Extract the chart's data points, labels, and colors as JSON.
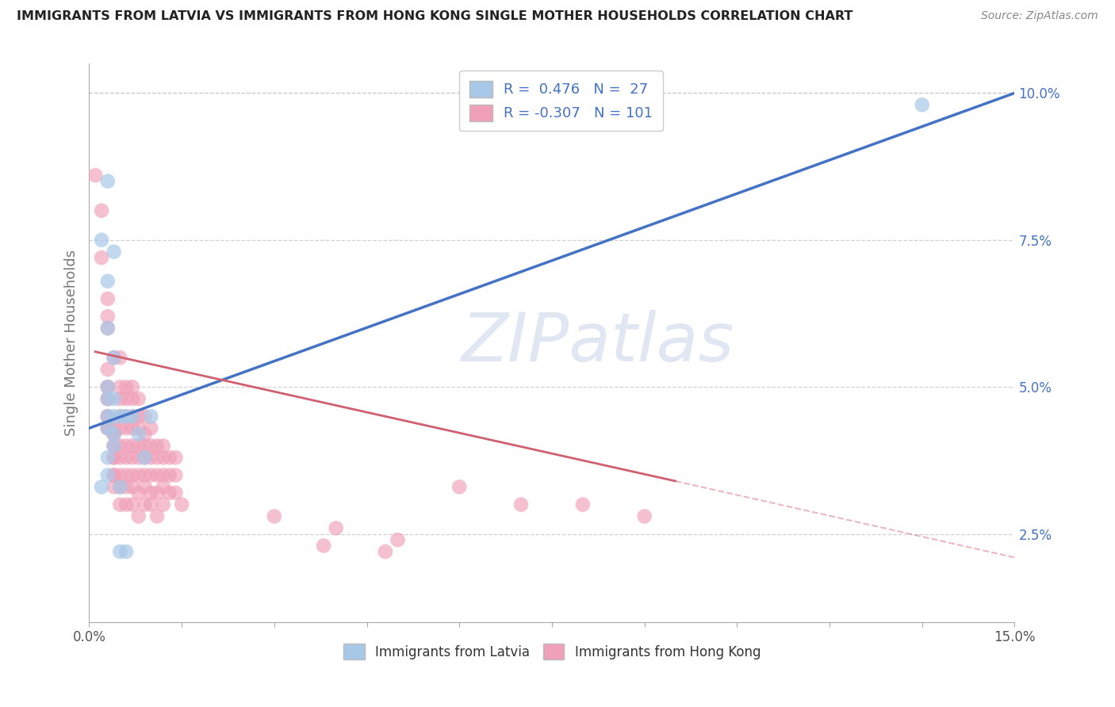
{
  "title": "IMMIGRANTS FROM LATVIA VS IMMIGRANTS FROM HONG KONG SINGLE MOTHER HOUSEHOLDS CORRELATION CHART",
  "source": "Source: ZipAtlas.com",
  "ylabel": "Single Mother Households",
  "xlim": [
    0.0,
    0.15
  ],
  "ylim": [
    0.01,
    0.105
  ],
  "latvia_color": "#a8c8e8",
  "hong_kong_color": "#f0a0b8",
  "latvia_line_color": "#4472c4",
  "hong_kong_line_color": "#d06070",
  "watermark": "ZIPatlas",
  "latvia_points": [
    [
      0.003,
      0.085,
      12
    ],
    [
      0.004,
      0.073,
      10
    ],
    [
      0.003,
      0.068,
      9
    ],
    [
      0.002,
      0.075,
      8
    ],
    [
      0.003,
      0.06,
      10
    ],
    [
      0.004,
      0.055,
      9
    ],
    [
      0.003,
      0.05,
      10
    ],
    [
      0.003,
      0.048,
      9
    ],
    [
      0.004,
      0.048,
      9
    ],
    [
      0.003,
      0.045,
      9
    ],
    [
      0.004,
      0.045,
      9
    ],
    [
      0.005,
      0.045,
      9
    ],
    [
      0.003,
      0.043,
      9
    ],
    [
      0.004,
      0.042,
      9
    ],
    [
      0.004,
      0.04,
      9
    ],
    [
      0.003,
      0.038,
      9
    ],
    [
      0.003,
      0.035,
      9
    ],
    [
      0.002,
      0.033,
      9
    ],
    [
      0.005,
      0.033,
      9
    ],
    [
      0.006,
      0.045,
      9
    ],
    [
      0.007,
      0.045,
      9
    ],
    [
      0.008,
      0.042,
      9
    ],
    [
      0.009,
      0.038,
      9
    ],
    [
      0.01,
      0.045,
      9
    ],
    [
      0.005,
      0.022,
      9
    ],
    [
      0.006,
      0.022,
      9
    ],
    [
      0.135,
      0.098,
      9
    ]
  ],
  "hk_points": [
    [
      0.001,
      0.086,
      22
    ],
    [
      0.002,
      0.08,
      12
    ],
    [
      0.002,
      0.072,
      10
    ],
    [
      0.003,
      0.065,
      10
    ],
    [
      0.003,
      0.062,
      10
    ],
    [
      0.003,
      0.06,
      10
    ],
    [
      0.004,
      0.055,
      10
    ],
    [
      0.003,
      0.053,
      10
    ],
    [
      0.003,
      0.05,
      10
    ],
    [
      0.003,
      0.05,
      10
    ],
    [
      0.003,
      0.048,
      10
    ],
    [
      0.003,
      0.048,
      10
    ],
    [
      0.003,
      0.045,
      10
    ],
    [
      0.003,
      0.045,
      10
    ],
    [
      0.003,
      0.043,
      10
    ],
    [
      0.003,
      0.043,
      10
    ],
    [
      0.004,
      0.043,
      10
    ],
    [
      0.004,
      0.042,
      10
    ],
    [
      0.004,
      0.042,
      10
    ],
    [
      0.004,
      0.04,
      10
    ],
    [
      0.004,
      0.04,
      10
    ],
    [
      0.004,
      0.038,
      10
    ],
    [
      0.004,
      0.038,
      10
    ],
    [
      0.004,
      0.035,
      10
    ],
    [
      0.004,
      0.035,
      10
    ],
    [
      0.004,
      0.033,
      10
    ],
    [
      0.005,
      0.055,
      10
    ],
    [
      0.005,
      0.05,
      10
    ],
    [
      0.005,
      0.048,
      10
    ],
    [
      0.005,
      0.045,
      10
    ],
    [
      0.005,
      0.043,
      10
    ],
    [
      0.005,
      0.04,
      10
    ],
    [
      0.005,
      0.038,
      10
    ],
    [
      0.005,
      0.035,
      10
    ],
    [
      0.005,
      0.033,
      10
    ],
    [
      0.005,
      0.03,
      10
    ],
    [
      0.006,
      0.05,
      10
    ],
    [
      0.006,
      0.048,
      10
    ],
    [
      0.006,
      0.045,
      10
    ],
    [
      0.006,
      0.043,
      10
    ],
    [
      0.006,
      0.04,
      10
    ],
    [
      0.006,
      0.038,
      10
    ],
    [
      0.006,
      0.035,
      10
    ],
    [
      0.006,
      0.033,
      10
    ],
    [
      0.006,
      0.03,
      10
    ],
    [
      0.007,
      0.05,
      10
    ],
    [
      0.007,
      0.048,
      10
    ],
    [
      0.007,
      0.045,
      10
    ],
    [
      0.007,
      0.043,
      10
    ],
    [
      0.007,
      0.04,
      10
    ],
    [
      0.007,
      0.038,
      10
    ],
    [
      0.007,
      0.035,
      10
    ],
    [
      0.007,
      0.033,
      10
    ],
    [
      0.007,
      0.03,
      10
    ],
    [
      0.008,
      0.048,
      10
    ],
    [
      0.008,
      0.045,
      10
    ],
    [
      0.008,
      0.043,
      10
    ],
    [
      0.008,
      0.04,
      10
    ],
    [
      0.008,
      0.038,
      10
    ],
    [
      0.008,
      0.035,
      10
    ],
    [
      0.008,
      0.032,
      10
    ],
    [
      0.008,
      0.028,
      10
    ],
    [
      0.009,
      0.045,
      10
    ],
    [
      0.009,
      0.042,
      10
    ],
    [
      0.009,
      0.04,
      10
    ],
    [
      0.009,
      0.038,
      10
    ],
    [
      0.009,
      0.035,
      10
    ],
    [
      0.009,
      0.033,
      10
    ],
    [
      0.009,
      0.03,
      10
    ],
    [
      0.01,
      0.043,
      10
    ],
    [
      0.01,
      0.04,
      10
    ],
    [
      0.01,
      0.038,
      10
    ],
    [
      0.01,
      0.035,
      10
    ],
    [
      0.01,
      0.032,
      10
    ],
    [
      0.01,
      0.03,
      10
    ],
    [
      0.011,
      0.04,
      10
    ],
    [
      0.011,
      0.038,
      10
    ],
    [
      0.011,
      0.035,
      10
    ],
    [
      0.011,
      0.032,
      10
    ],
    [
      0.011,
      0.028,
      10
    ],
    [
      0.012,
      0.04,
      10
    ],
    [
      0.012,
      0.038,
      10
    ],
    [
      0.012,
      0.035,
      10
    ],
    [
      0.012,
      0.033,
      10
    ],
    [
      0.012,
      0.03,
      10
    ],
    [
      0.013,
      0.038,
      10
    ],
    [
      0.013,
      0.035,
      10
    ],
    [
      0.013,
      0.032,
      10
    ],
    [
      0.014,
      0.038,
      10
    ],
    [
      0.014,
      0.035,
      10
    ],
    [
      0.014,
      0.032,
      10
    ],
    [
      0.015,
      0.03,
      10
    ],
    [
      0.03,
      0.028,
      10
    ],
    [
      0.04,
      0.026,
      10
    ],
    [
      0.05,
      0.024,
      10
    ],
    [
      0.06,
      0.033,
      10
    ],
    [
      0.07,
      0.03,
      10
    ],
    [
      0.08,
      0.03,
      10
    ],
    [
      0.09,
      0.028,
      10
    ],
    [
      0.038,
      0.023,
      10
    ],
    [
      0.048,
      0.022,
      10
    ]
  ],
  "latvia_line": {
    "x0": 0.0,
    "y0": 0.043,
    "x1": 0.15,
    "y1": 0.1
  },
  "hk_line_solid": {
    "x0": 0.001,
    "y0": 0.056,
    "x1": 0.095,
    "y1": 0.034
  },
  "hk_line_dashed": {
    "x0": 0.095,
    "y0": 0.034,
    "x1": 0.15,
    "y1": 0.021
  }
}
